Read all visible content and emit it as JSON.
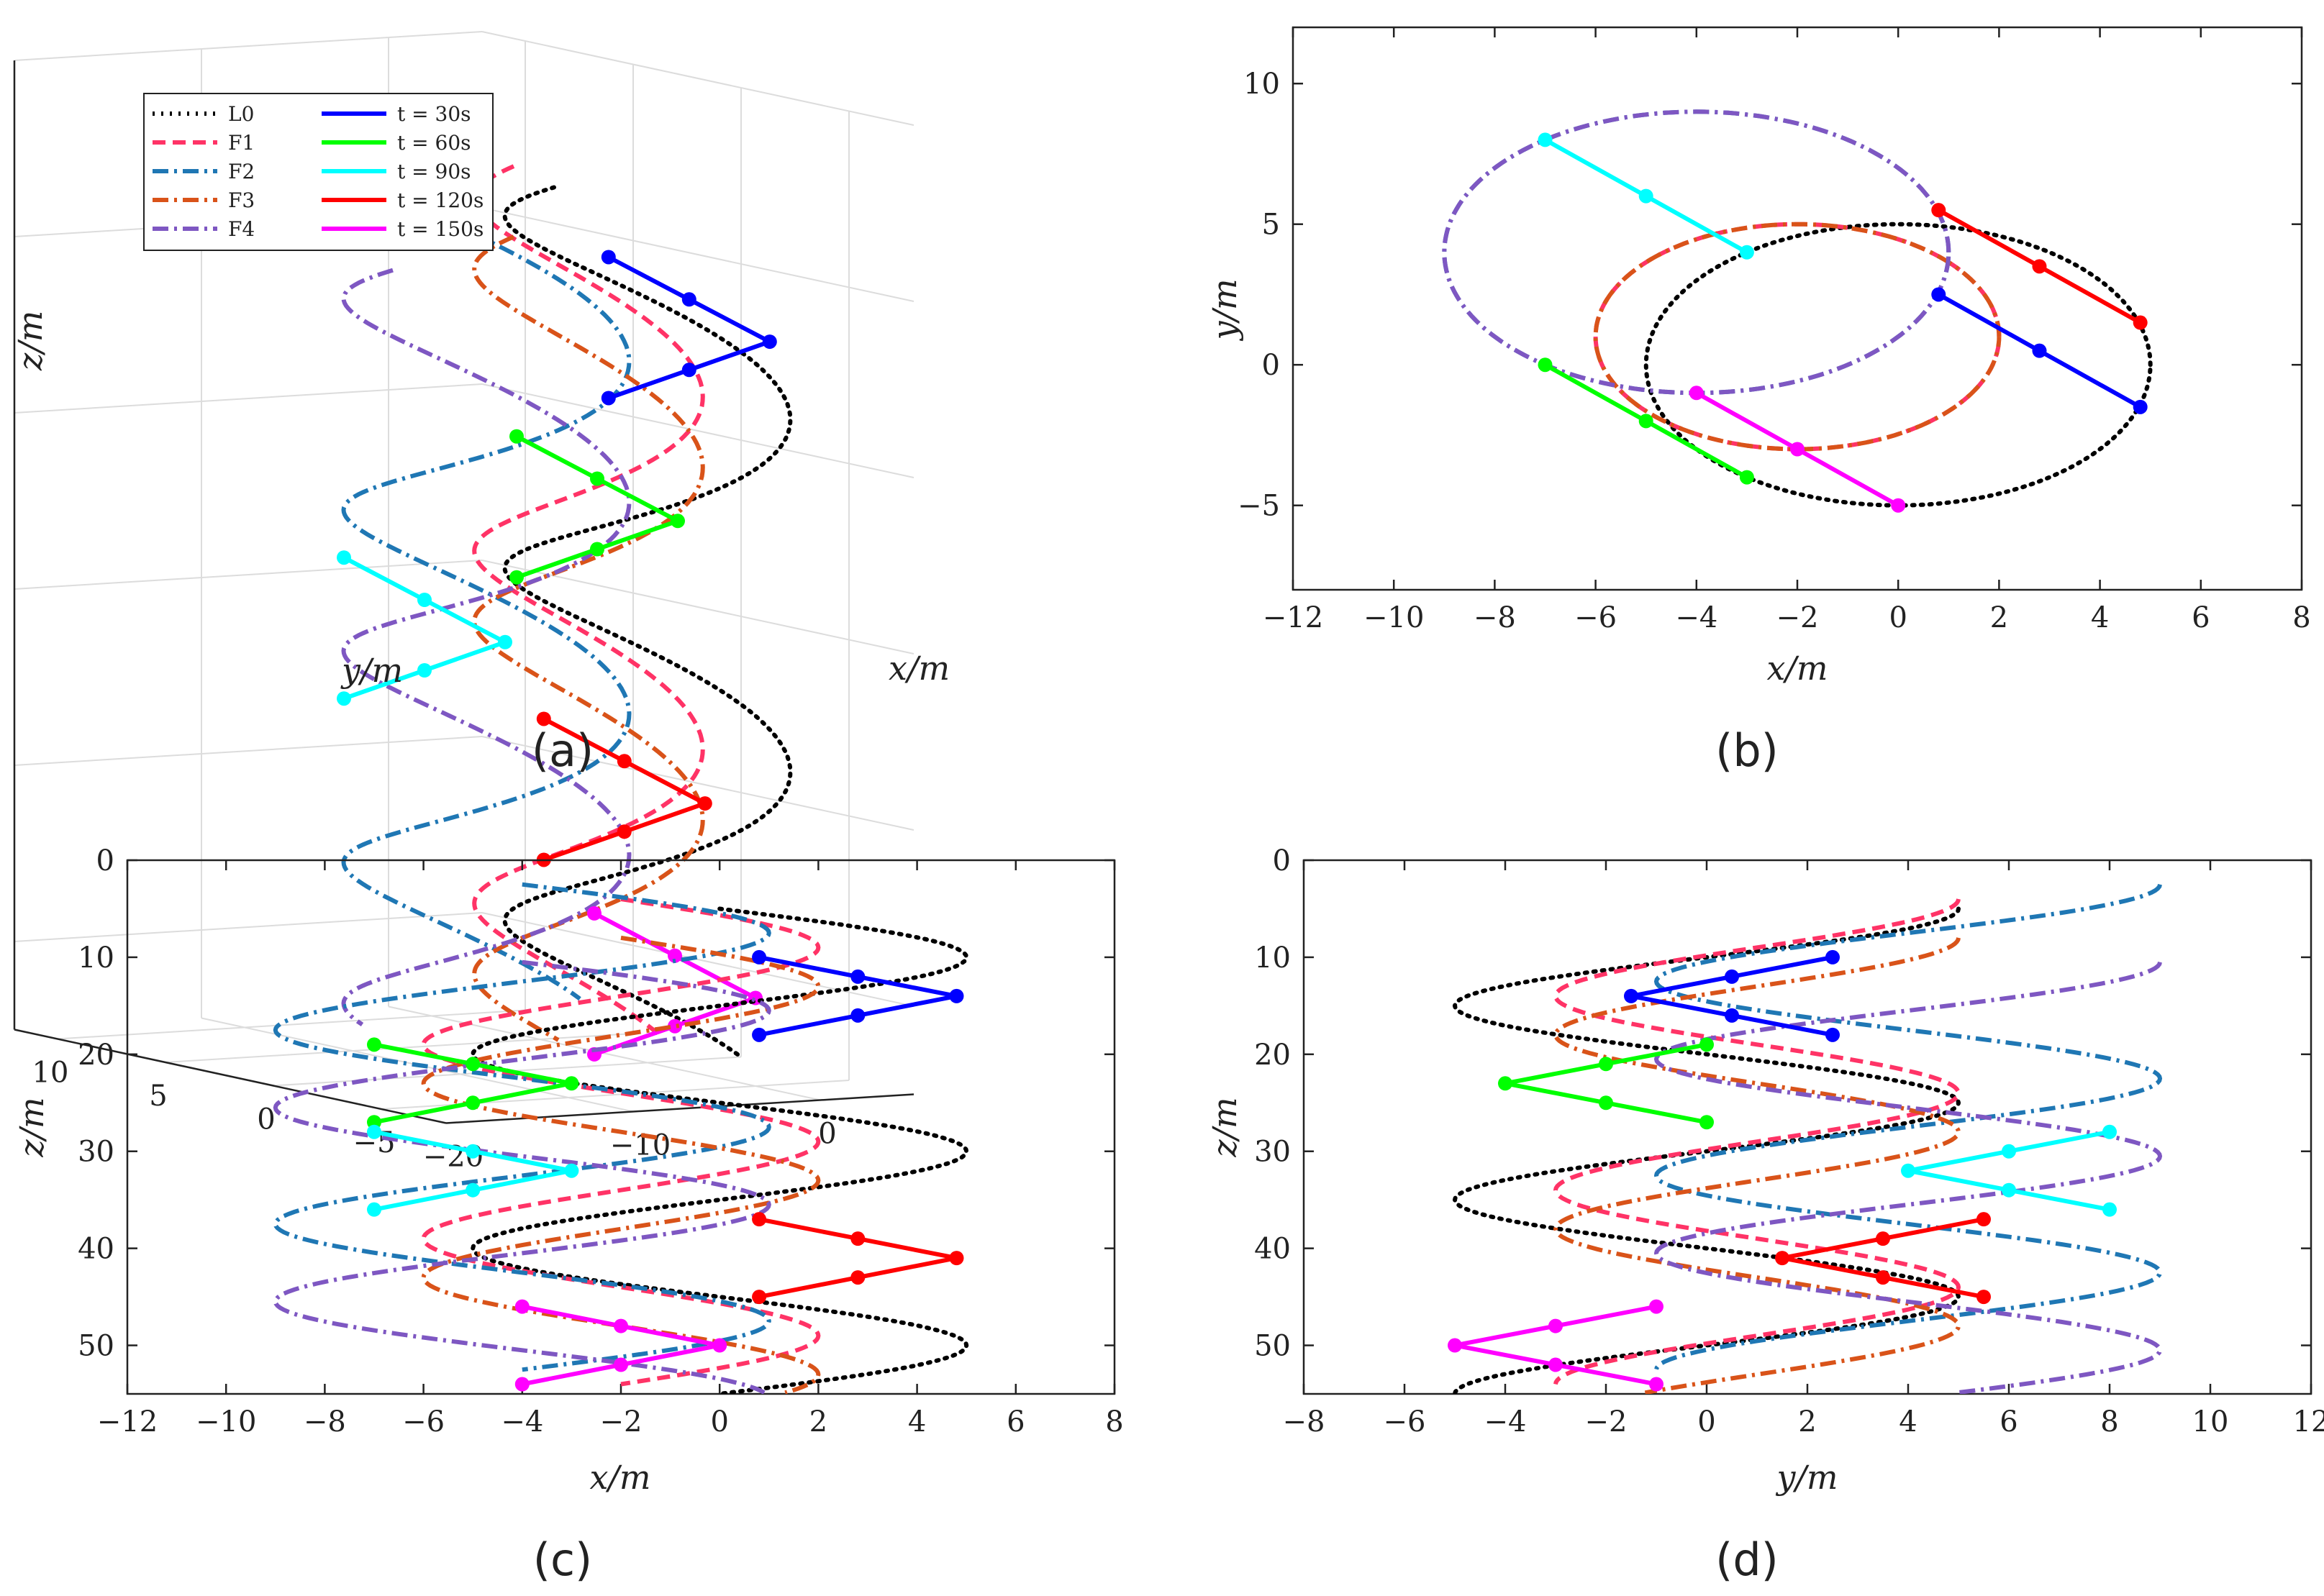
{
  "chart_data": [
    {
      "panel": "a",
      "type": "line",
      "projection": "3d",
      "caption": "(a)",
      "xlabel": "x/m",
      "ylabel": "y/m",
      "zlabel": "z/m",
      "x_ticks": [
        "-20",
        "-10",
        "0"
      ],
      "y_ticks": [
        "10",
        "5",
        "0",
        "-5"
      ],
      "z_ticks": [
        "0",
        "10",
        "20",
        "30",
        "40",
        "50"
      ],
      "zlim_reversed": true,
      "legend": {
        "placement": "top-left",
        "entries": [
          {
            "label": "L0",
            "color": "#000000",
            "style": "dotted"
          },
          {
            "label": "F1",
            "color": "#ff3366",
            "style": "dashed"
          },
          {
            "label": "F2",
            "color": "#1f77b4",
            "style": "dashdot"
          },
          {
            "label": "F3",
            "color": "#d95319",
            "style": "dashdot"
          },
          {
            "label": "F4",
            "color": "#7e57c2",
            "style": "dashdot"
          },
          {
            "label": "t = 30s",
            "color": "#0000ff",
            "style": "solid"
          },
          {
            "label": "t = 60s",
            "color": "#00ff00",
            "style": "solid"
          },
          {
            "label": "t = 90s",
            "color": "#00ffff",
            "style": "solid"
          },
          {
            "label": "t = 120s",
            "color": "#ff0000",
            "style": "solid"
          },
          {
            "label": "t = 150s",
            "color": "#ff00ff",
            "style": "solid"
          }
        ]
      }
    },
    {
      "panel": "b",
      "type": "line",
      "caption": "(b)",
      "xlabel": "x/m",
      "ylabel": "y/m",
      "xlim": [
        -12,
        8
      ],
      "ylim": [
        -8,
        12
      ],
      "x_ticks": [
        "-12",
        "-10",
        "-8",
        "-6",
        "-4",
        "-2",
        "0",
        "2",
        "4",
        "6",
        "8"
      ],
      "y_ticks": [
        "-5",
        "0",
        "5",
        "10"
      ],
      "series": [
        {
          "name": "L0",
          "color": "#000000",
          "style": "dotted",
          "circle_center": [
            0,
            0
          ],
          "radius": 5
        },
        {
          "name": "F1",
          "color": "#ff3366",
          "style": "dashed",
          "circle_center": [
            -2,
            1
          ],
          "radius": 4
        },
        {
          "name": "F2",
          "color": "#1f77b4",
          "style": "dashdot",
          "circle_center": [
            -4,
            4
          ],
          "radius": 5
        },
        {
          "name": "F3",
          "color": "#d95319",
          "style": "dashdot",
          "circle_center": [
            -2,
            1
          ],
          "radius": 4
        },
        {
          "name": "F4",
          "color": "#7e57c2",
          "style": "dashdot",
          "circle_center": [
            -4,
            4
          ],
          "radius": 5
        }
      ],
      "formations": [
        {
          "name": "t = 30s",
          "color": "#0000ff",
          "points": [
            [
              0.8,
              2.5
            ],
            [
              2.8,
              0.5
            ],
            [
              4.8,
              -1.5
            ]
          ]
        },
        {
          "name": "t = 60s",
          "color": "#00ff00",
          "points": [
            [
              -7,
              0
            ],
            [
              -5,
              -2
            ],
            [
              -3,
              -4
            ]
          ]
        },
        {
          "name": "t = 90s",
          "color": "#00ffff",
          "points": [
            [
              -7,
              8
            ],
            [
              -5,
              6
            ],
            [
              -3,
              4
            ]
          ]
        },
        {
          "name": "t = 120s",
          "color": "#ff0000",
          "points": [
            [
              0.8,
              5.5
            ],
            [
              2.8,
              3.5
            ],
            [
              4.8,
              1.5
            ]
          ]
        },
        {
          "name": "t = 150s",
          "color": "#ff00ff",
          "points": [
            [
              -4,
              -1
            ],
            [
              -2,
              -3
            ],
            [
              0,
              -5
            ]
          ]
        }
      ]
    },
    {
      "panel": "c",
      "type": "line",
      "caption": "(c)",
      "xlabel": "x/m",
      "ylabel": "z/m",
      "xlim": [
        -12,
        8
      ],
      "ylim": [
        0,
        55
      ],
      "y_reversed": true,
      "x_ticks": [
        "-12",
        "-10",
        "-8",
        "-6",
        "-4",
        "-2",
        "0",
        "2",
        "4",
        "6",
        "8"
      ],
      "y_ticks": [
        "0",
        "10",
        "20",
        "30",
        "40",
        "50"
      ],
      "formations": [
        {
          "name": "t = 30s",
          "color": "#0000ff",
          "points": [
            [
              0.8,
              10
            ],
            [
              2.8,
              12
            ],
            [
              4.8,
              14
            ],
            [
              2.8,
              16
            ],
            [
              0.8,
              18
            ]
          ]
        },
        {
          "name": "t = 60s",
          "color": "#00ff00",
          "points": [
            [
              -7,
              19
            ],
            [
              -5,
              21
            ],
            [
              -3,
              23
            ],
            [
              -5,
              25
            ],
            [
              -7,
              27
            ]
          ]
        },
        {
          "name": "t = 90s",
          "color": "#00ffff",
          "points": [
            [
              -7,
              28
            ],
            [
              -5,
              30
            ],
            [
              -3,
              32
            ],
            [
              -5,
              34
            ],
            [
              -7,
              36
            ]
          ]
        },
        {
          "name": "t = 120s",
          "color": "#ff0000",
          "points": [
            [
              0.8,
              37
            ],
            [
              2.8,
              39
            ],
            [
              4.8,
              41
            ],
            [
              2.8,
              43
            ],
            [
              0.8,
              45
            ]
          ]
        },
        {
          "name": "t = 150s",
          "color": "#ff00ff",
          "points": [
            [
              -4,
              46
            ],
            [
              -2,
              48
            ],
            [
              0,
              50
            ],
            [
              -2,
              52
            ],
            [
              -4,
              54
            ]
          ]
        }
      ]
    },
    {
      "panel": "d",
      "type": "line",
      "caption": "(d)",
      "xlabel": "y/m",
      "ylabel": "z/m",
      "xlim": [
        -8,
        12
      ],
      "ylim": [
        0,
        55
      ],
      "y_reversed": true,
      "x_ticks": [
        "-8",
        "-6",
        "-4",
        "-2",
        "0",
        "2",
        "4",
        "6",
        "8",
        "10",
        "12"
      ],
      "y_ticks": [
        "0",
        "10",
        "20",
        "30",
        "40",
        "50"
      ],
      "formations": [
        {
          "name": "t = 30s",
          "color": "#0000ff",
          "points": [
            [
              2.5,
              10
            ],
            [
              0.5,
              12
            ],
            [
              -1.5,
              14
            ],
            [
              0.5,
              16
            ],
            [
              2.5,
              18
            ]
          ]
        },
        {
          "name": "t = 60s",
          "color": "#00ff00",
          "points": [
            [
              0,
              19
            ],
            [
              -2,
              21
            ],
            [
              -4,
              23
            ],
            [
              -2,
              25
            ],
            [
              0,
              27
            ]
          ]
        },
        {
          "name": "t = 90s",
          "color": "#00ffff",
          "points": [
            [
              8,
              28
            ],
            [
              6,
              30
            ],
            [
              4,
              32
            ],
            [
              6,
              34
            ],
            [
              8,
              36
            ]
          ]
        },
        {
          "name": "t = 120s",
          "color": "#ff0000",
          "points": [
            [
              5.5,
              37
            ],
            [
              3.5,
              39
            ],
            [
              1.5,
              41
            ],
            [
              3.5,
              43
            ],
            [
              5.5,
              45
            ]
          ]
        },
        {
          "name": "t = 150s",
          "color": "#ff00ff",
          "points": [
            [
              -1,
              46
            ],
            [
              -3,
              48
            ],
            [
              -5,
              50
            ],
            [
              -3,
              52
            ],
            [
              -1,
              54
            ]
          ]
        }
      ]
    }
  ]
}
